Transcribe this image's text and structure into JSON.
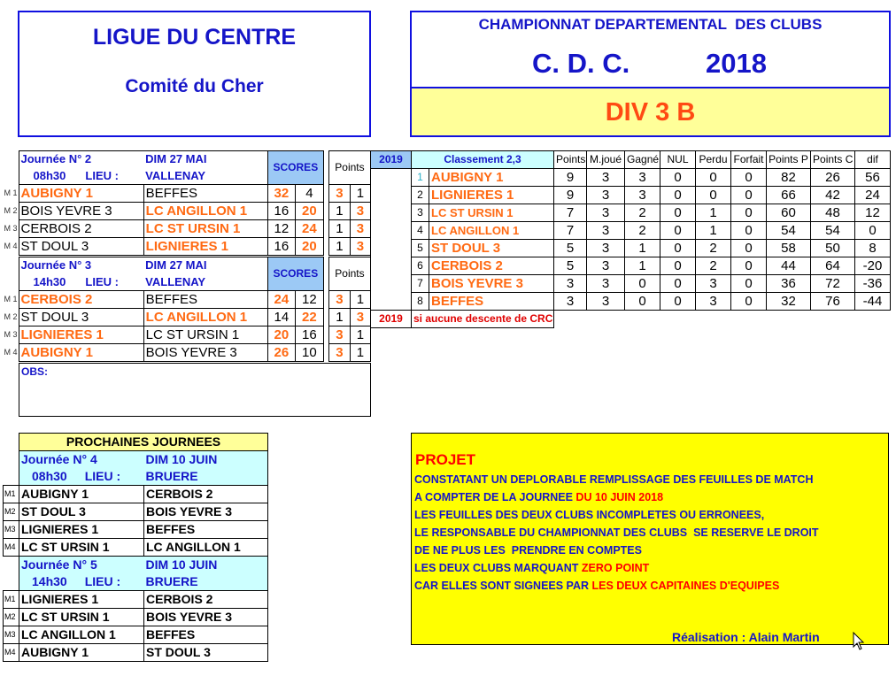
{
  "header": {
    "league": "LIGUE DU CENTRE",
    "committee": "Comité du Cher",
    "championship": "CHAMPIONNAT DEPARTEMENTAL  DES CLUBS",
    "cdc": "C. D. C.",
    "year": "2018",
    "division": "DIV 3 B"
  },
  "colors": {
    "accent_orange": "#ff6a13",
    "blue": "#1515c8",
    "yellow": "#ffff00",
    "light_yellow": "#ffff99",
    "score_header": "#9cc9f5",
    "cyan": "#ccffff"
  },
  "journees": [
    {
      "title": "Journée N° 2",
      "date": "DIM 27 MAI",
      "time": "08h30",
      "lieu_label": "LIEU :",
      "lieu": "VALLENAY",
      "scores_label": "SCORES",
      "points_label": "Points",
      "matches": [
        {
          "m": "M 1",
          "t1": "AUBIGNY 1",
          "t2": "BEFFES",
          "s1": "32",
          "s2": "4",
          "p1": "3",
          "p2": "1",
          "winner": 1
        },
        {
          "m": "M 2",
          "t1": "BOIS YEVRE 3",
          "t2": "LC ANGILLON 1",
          "s1": "16",
          "s2": "20",
          "p1": "1",
          "p2": "3",
          "winner": 2
        },
        {
          "m": "M 3",
          "t1": "CERBOIS 2",
          "t2": "LC ST URSIN  1",
          "s1": "12",
          "s2": "24",
          "p1": "1",
          "p2": "3",
          "winner": 2
        },
        {
          "m": "M 4",
          "t1": "ST DOUL 3",
          "t2": "LIGNIERES 1",
          "s1": "16",
          "s2": "20",
          "p1": "1",
          "p2": "3",
          "winner": 2
        }
      ]
    },
    {
      "title": "Journée N° 3",
      "date": "DIM 27 MAI",
      "time": "14h30",
      "lieu_label": "LIEU :",
      "lieu": "VALLENAY",
      "scores_label": "SCORES",
      "points_label": "Points",
      "matches": [
        {
          "m": "M 1",
          "t1": "CERBOIS 2",
          "t2": "BEFFES",
          "s1": "24",
          "s2": "12",
          "p1": "3",
          "p2": "1",
          "winner": 1
        },
        {
          "m": "M 2",
          "t1": "ST DOUL 3",
          "t2": "LC ANGILLON 1",
          "s1": "14",
          "s2": "22",
          "p1": "1",
          "p2": "3",
          "winner": 2
        },
        {
          "m": "M 3",
          "t1": "LIGNIERES 1",
          "t2": "LC ST URSIN  1",
          "s1": "20",
          "s2": "16",
          "p1": "3",
          "p2": "1",
          "winner": 1
        },
        {
          "m": "M 4",
          "t1": "AUBIGNY 1",
          "t2": "BOIS YEVRE 3",
          "s1": "26",
          "s2": "10",
          "p1": "3",
          "p2": "1",
          "winner": 1
        }
      ]
    }
  ],
  "obs_label": "OBS:",
  "standings": {
    "year": "2019",
    "title": "Classement 2,3",
    "columns": [
      "Points",
      "M.joué",
      "Gagné",
      "NUL",
      "Perdu",
      "Forfait",
      "Points P",
      "Points C",
      "dif"
    ],
    "rows": [
      {
        "rank": "1",
        "team": "AUBIGNY 1",
        "vals": [
          "9",
          "3",
          "3",
          "0",
          "0",
          "0",
          "82",
          "26",
          "56"
        ]
      },
      {
        "rank": "2",
        "team": "LIGNIERES 1",
        "vals": [
          "9",
          "3",
          "3",
          "0",
          "0",
          "0",
          "66",
          "42",
          "24"
        ]
      },
      {
        "rank": "3",
        "team": "LC ST URSIN  1",
        "vals": [
          "7",
          "3",
          "2",
          "0",
          "1",
          "0",
          "60",
          "48",
          "12"
        ]
      },
      {
        "rank": "4",
        "team": "LC ANGILLON 1",
        "vals": [
          "7",
          "3",
          "2",
          "0",
          "1",
          "0",
          "54",
          "54",
          "0"
        ]
      },
      {
        "rank": "5",
        "team": "ST DOUL 3",
        "vals": [
          "5",
          "3",
          "1",
          "0",
          "2",
          "0",
          "58",
          "50",
          "8"
        ]
      },
      {
        "rank": "6",
        "team": "CERBOIS 2",
        "vals": [
          "5",
          "3",
          "1",
          "0",
          "2",
          "0",
          "44",
          "64",
          "-20"
        ]
      },
      {
        "rank": "7",
        "team": "BOIS YEVRE 3",
        "vals": [
          "3",
          "3",
          "0",
          "0",
          "3",
          "0",
          "36",
          "72",
          "-36"
        ]
      },
      {
        "rank": "8",
        "team": "BEFFES",
        "vals": [
          "3",
          "3",
          "0",
          "0",
          "3",
          "0",
          "32",
          "76",
          "-44"
        ]
      }
    ],
    "note_year": "2019",
    "note": "si aucune descente de CRC"
  },
  "upcoming": {
    "title": "PROCHAINES JOURNEES",
    "journees": [
      {
        "title": "Journée N° 4",
        "date": "DIM 10 JUIN",
        "time": "08h30",
        "lieu_label": "LIEU :",
        "lieu": "BRUERE",
        "matches": [
          {
            "m": "M1",
            "t1": "AUBIGNY 1",
            "t2": "CERBOIS 2"
          },
          {
            "m": "M2",
            "t1": "ST DOUL 3",
            "t2": "BOIS YEVRE 3"
          },
          {
            "m": "M3",
            "t1": "LIGNIERES 1",
            "t2": "BEFFES"
          },
          {
            "m": "M4",
            "t1": "LC ST URSIN  1",
            "t2": "LC ANGILLON 1"
          }
        ]
      },
      {
        "title": "Journée N° 5",
        "date": "DIM 10 JUIN",
        "time": "14h30",
        "lieu_label": "LIEU :",
        "lieu": "BRUERE",
        "matches": [
          {
            "m": "M1",
            "t1": "LIGNIERES 1",
            "t2": "CERBOIS 2"
          },
          {
            "m": "M2",
            "t1": "LC ST URSIN  1",
            "t2": "BOIS YEVRE 3"
          },
          {
            "m": "M3",
            "t1": "LC ANGILLON 1",
            "t2": "BEFFES"
          },
          {
            "m": "M4",
            "t1": "AUBIGNY 1",
            "t2": "ST DOUL 3"
          }
        ]
      }
    ]
  },
  "projet": {
    "title": "PROJET",
    "lines": [
      [
        {
          "t": "CONSTATANT UN DEPLORABLE REMPLISSAGE DES FEUILLES DE MATCH",
          "red": false
        }
      ],
      [
        {
          "t": "A COMPTER DE LA JOURNEE ",
          "red": false
        },
        {
          "t": "DU 10 JUIN 2018",
          "red": true
        }
      ],
      [
        {
          "t": "LES FEUILLES DES DEUX CLUBS INCOMPLETES OU ERRONEES,",
          "red": false
        }
      ],
      [
        {
          "t": "LE RESPONSABLE DU CHAMPIONNAT DES CLUBS  SE RESERVE LE DROIT",
          "red": false
        }
      ],
      [
        {
          "t": "DE NE PLUS LES  PRENDRE EN COMPTES",
          "red": false
        }
      ],
      [
        {
          "t": "LES DEUX CLUBS MARQUANT ",
          "red": false
        },
        {
          "t": "ZERO POINT",
          "red": true
        }
      ],
      [
        {
          "t": "CAR ELLES SONT SIGNEES PAR ",
          "red": false
        },
        {
          "t": "LES DEUX CAPITAINES D'EQUIPES",
          "red": true
        }
      ]
    ],
    "credit": "Réalisation : Alain Martin"
  }
}
